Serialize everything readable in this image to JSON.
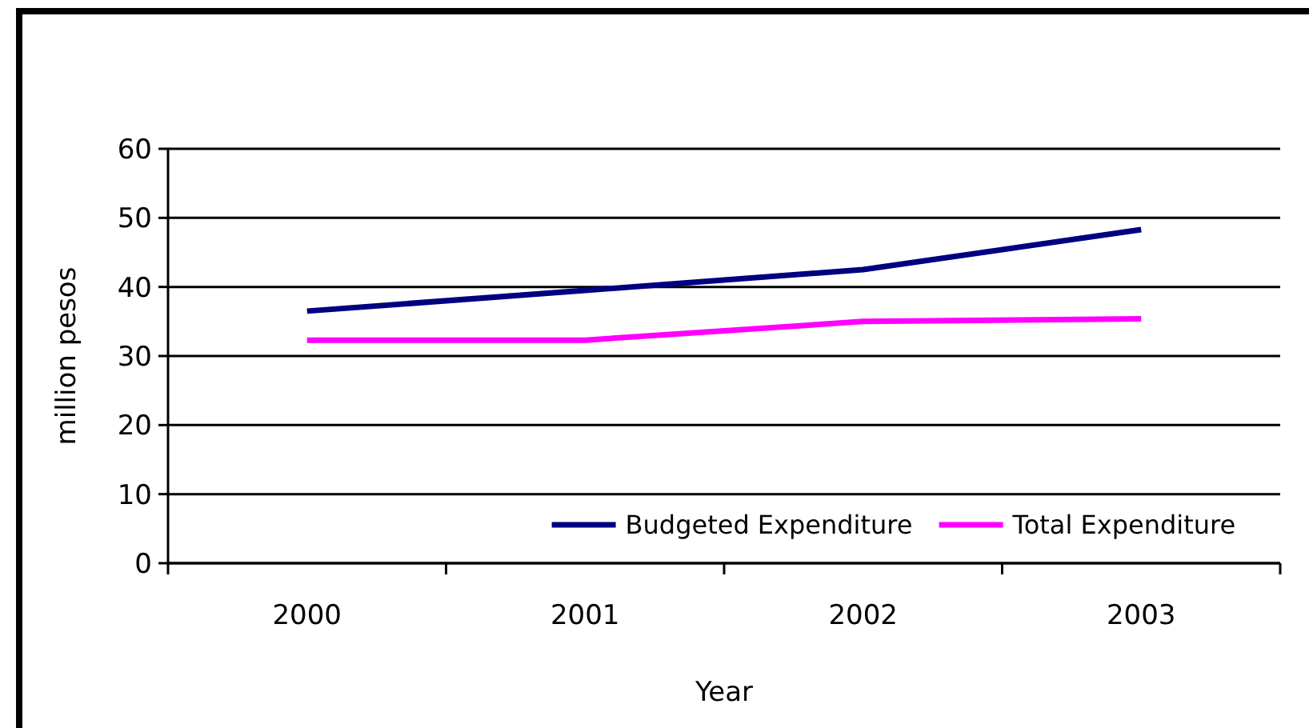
{
  "chart_data": {
    "type": "line",
    "xlabel": "Year",
    "ylabel": "million pesos",
    "categories": [
      "2000",
      "2001",
      "2002",
      "2003"
    ],
    "series": [
      {
        "name": "Budgeted Expenditure",
        "color": "#000080",
        "values": [
          36.5,
          39.5,
          42.5,
          48.3
        ]
      },
      {
        "name": "Total Expenditure",
        "color": "#ff00ff",
        "values": [
          32.3,
          32.3,
          35.0,
          35.4
        ]
      }
    ],
    "ylim": [
      0,
      60
    ],
    "yticks": [
      0,
      10,
      20,
      30,
      40,
      50,
      60
    ],
    "grid": "y",
    "legend": "bottom right",
    "marker": "none",
    "line_style": "solid"
  }
}
